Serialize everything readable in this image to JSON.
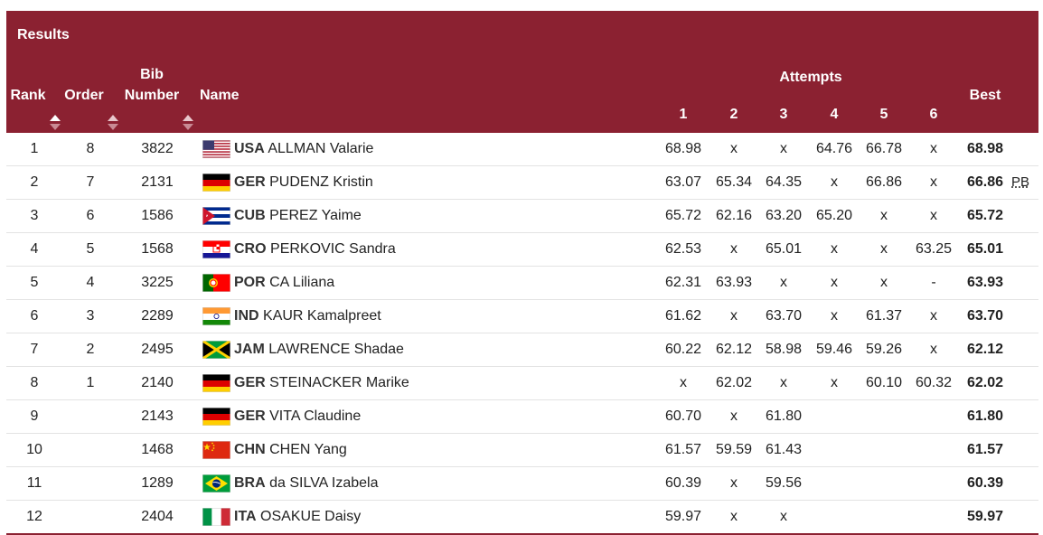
{
  "header": {
    "title": "Results",
    "rank": "Rank",
    "order": "Order",
    "bib_line1": "Bib",
    "bib_line2": "Number",
    "name": "Name",
    "attempts": "Attempts",
    "attempt_labels": [
      "1",
      "2",
      "3",
      "4",
      "5",
      "6"
    ],
    "best": "Best"
  },
  "colors": {
    "header_bg": "#8b2131"
  },
  "rows": [
    {
      "rank": "1",
      "order": "8",
      "bib": "3822",
      "noc": "USA",
      "name": "ALLMAN Valarie",
      "flag": "usa",
      "attempts": [
        "68.98",
        "x",
        "x",
        "64.76",
        "66.78",
        "x"
      ],
      "best": "68.98",
      "note": ""
    },
    {
      "rank": "2",
      "order": "7",
      "bib": "2131",
      "noc": "GER",
      "name": "PUDENZ Kristin",
      "flag": "ger",
      "attempts": [
        "63.07",
        "65.34",
        "64.35",
        "x",
        "66.86",
        "x"
      ],
      "best": "66.86",
      "note": "PB"
    },
    {
      "rank": "3",
      "order": "6",
      "bib": "1586",
      "noc": "CUB",
      "name": "PEREZ Yaime",
      "flag": "cub",
      "attempts": [
        "65.72",
        "62.16",
        "63.20",
        "65.20",
        "x",
        "x"
      ],
      "best": "65.72",
      "note": ""
    },
    {
      "rank": "4",
      "order": "5",
      "bib": "1568",
      "noc": "CRO",
      "name": "PERKOVIC Sandra",
      "flag": "cro",
      "attempts": [
        "62.53",
        "x",
        "65.01",
        "x",
        "x",
        "63.25"
      ],
      "best": "65.01",
      "note": ""
    },
    {
      "rank": "5",
      "order": "4",
      "bib": "3225",
      "noc": "POR",
      "name": "CA Liliana",
      "flag": "por",
      "attempts": [
        "62.31",
        "63.93",
        "x",
        "x",
        "x",
        "-"
      ],
      "best": "63.93",
      "note": ""
    },
    {
      "rank": "6",
      "order": "3",
      "bib": "2289",
      "noc": "IND",
      "name": "KAUR Kamalpreet",
      "flag": "ind",
      "attempts": [
        "61.62",
        "x",
        "63.70",
        "x",
        "61.37",
        "x"
      ],
      "best": "63.70",
      "note": ""
    },
    {
      "rank": "7",
      "order": "2",
      "bib": "2495",
      "noc": "JAM",
      "name": "LAWRENCE Shadae",
      "flag": "jam",
      "attempts": [
        "60.22",
        "62.12",
        "58.98",
        "59.46",
        "59.26",
        "x"
      ],
      "best": "62.12",
      "note": ""
    },
    {
      "rank": "8",
      "order": "1",
      "bib": "2140",
      "noc": "GER",
      "name": "STEINACKER Marike",
      "flag": "ger",
      "attempts": [
        "x",
        "62.02",
        "x",
        "x",
        "60.10",
        "60.32"
      ],
      "best": "62.02",
      "note": ""
    },
    {
      "rank": "9",
      "order": "",
      "bib": "2143",
      "noc": "GER",
      "name": "VITA Claudine",
      "flag": "ger",
      "attempts": [
        "60.70",
        "x",
        "61.80",
        "",
        "",
        ""
      ],
      "best": "61.80",
      "note": ""
    },
    {
      "rank": "10",
      "order": "",
      "bib": "1468",
      "noc": "CHN",
      "name": "CHEN Yang",
      "flag": "chn",
      "attempts": [
        "61.57",
        "59.59",
        "61.43",
        "",
        "",
        ""
      ],
      "best": "61.57",
      "note": ""
    },
    {
      "rank": "11",
      "order": "",
      "bib": "1289",
      "noc": "BRA",
      "name": "da SILVA Izabela",
      "flag": "bra",
      "attempts": [
        "60.39",
        "x",
        "59.56",
        "",
        "",
        ""
      ],
      "best": "60.39",
      "note": ""
    },
    {
      "rank": "12",
      "order": "",
      "bib": "2404",
      "noc": "ITA",
      "name": "OSAKUE Daisy",
      "flag": "ita",
      "attempts": [
        "59.97",
        "x",
        "x",
        "",
        "",
        ""
      ],
      "best": "59.97",
      "note": ""
    }
  ]
}
